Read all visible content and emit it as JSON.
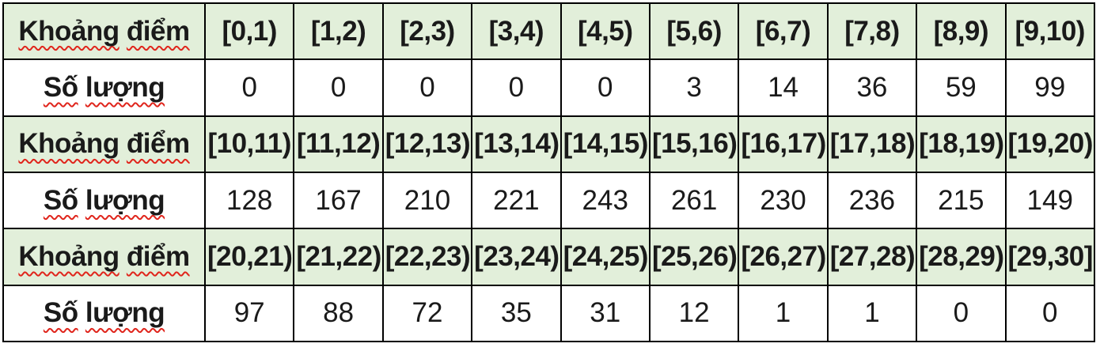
{
  "table": {
    "header_label": "Khoảng điểm",
    "value_label": "Số lượng",
    "groups": [
      {
        "ranges": [
          "[0,1)",
          "[1,2)",
          "[2,3)",
          "[3,4)",
          "[4,5)",
          "[5,6)",
          "[6,7)",
          "[7,8)",
          "[8,9)",
          "[9,10)"
        ],
        "counts": [
          "0",
          "0",
          "0",
          "0",
          "0",
          "3",
          "14",
          "36",
          "59",
          "99"
        ]
      },
      {
        "ranges": [
          "[10,11)",
          "[11,12)",
          "[12,13)",
          "[13,14)",
          "[14,15)",
          "[15,16)",
          "[16,17)",
          "[17,18)",
          "[18,19)",
          "[19,20)"
        ],
        "counts": [
          "128",
          "167",
          "210",
          "221",
          "243",
          "261",
          "230",
          "236",
          "215",
          "149"
        ]
      },
      {
        "ranges": [
          "[20,21)",
          "[21,22)",
          "[22,23)",
          "[23,24)",
          "[24,25)",
          "[25,26)",
          "[26,27)",
          "[27,28)",
          "[28,29)",
          "[29,30]"
        ],
        "counts": [
          "97",
          "88",
          "72",
          "35",
          "31",
          "12",
          "1",
          "1",
          "0",
          "0"
        ]
      }
    ]
  },
  "colors": {
    "header_bg": "#e2efda",
    "border": "#000000",
    "text": "#1a1a1a",
    "spellcheck_underline": "#e0251c"
  },
  "chart_data": {
    "type": "table",
    "title": "",
    "row_labels": [
      "Khoảng điểm",
      "Số lượng"
    ],
    "ranges": [
      "[0,1)",
      "[1,2)",
      "[2,3)",
      "[3,4)",
      "[4,5)",
      "[5,6)",
      "[6,7)",
      "[7,8)",
      "[8,9)",
      "[9,10)",
      "[10,11)",
      "[11,12)",
      "[12,13)",
      "[13,14)",
      "[14,15)",
      "[15,16)",
      "[16,17)",
      "[17,18)",
      "[18,19)",
      "[19,20)",
      "[20,21)",
      "[21,22)",
      "[22,23)",
      "[23,24)",
      "[24,25)",
      "[25,26)",
      "[26,27)",
      "[27,28)",
      "[28,29)",
      "[29,30]"
    ],
    "counts": [
      0,
      0,
      0,
      0,
      0,
      3,
      14,
      36,
      59,
      99,
      128,
      167,
      210,
      221,
      243,
      261,
      230,
      236,
      215,
      149,
      97,
      88,
      72,
      35,
      31,
      12,
      1,
      1,
      0,
      0
    ]
  }
}
